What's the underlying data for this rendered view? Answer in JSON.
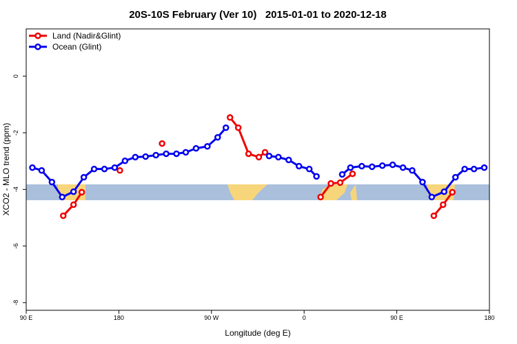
{
  "chart_data": {
    "type": "line",
    "title": "20S-10S February (Ver 10)   2015-01-01 to 2020-12-18",
    "x_label": "Longitude (deg E)",
    "y_label": "XCO2 - MLO trend (ppm)",
    "xlim": [
      90,
      540
    ],
    "ylim": [
      -8.27,
      1.67
    ],
    "xticks": [
      {
        "value": 90,
        "label": "90 E"
      },
      180,
      {
        "value": 270,
        "label": "90 W"
      },
      {
        "value": 360,
        "label": "0"
      },
      {
        "value": 450,
        "label": "90 E"
      },
      {
        "value": 540,
        "label": "180"
      }
    ],
    "yticks": [
      0,
      -2,
      -4,
      -6,
      -8
    ],
    "legend": "top-left",
    "series": [
      {
        "name": "Land (Nadir&Glint)",
        "color": "#ee0000",
        "x": [
          126,
          136,
          144,
          null,
          181,
          null,
          222,
          null,
          288,
          296,
          306,
          316,
          322,
          null,
          376,
          386,
          395,
          407,
          null,
          486,
          495,
          504
        ],
        "values": [
          -4.93,
          -4.54,
          -4.1,
          null,
          -3.33,
          null,
          -2.38,
          null,
          -1.46,
          -1.82,
          -2.74,
          -2.86,
          -2.69,
          null,
          -4.27,
          -3.79,
          -3.76,
          -3.45,
          null,
          -4.93,
          -4.54,
          -4.1
        ]
      },
      {
        "name": "Ocean (Glint)",
        "color": "#0000ee",
        "x": [
          96,
          105,
          115,
          125,
          136,
          146,
          156,
          166,
          176,
          186,
          196,
          206,
          216,
          226,
          236,
          245,
          255,
          266,
          276,
          284,
          null,
          326,
          335,
          345,
          355,
          365,
          372,
          null,
          397,
          405,
          416,
          426,
          436,
          446,
          456,
          465,
          475,
          484,
          496,
          507,
          516,
          525,
          535
        ],
        "values": [
          -3.23,
          -3.33,
          -3.74,
          -4.27,
          -4.08,
          -3.57,
          -3.28,
          -3.28,
          -3.23,
          -2.99,
          -2.86,
          -2.84,
          -2.79,
          -2.74,
          -2.74,
          -2.69,
          -2.55,
          -2.48,
          -2.16,
          -1.82,
          null,
          -2.82,
          -2.86,
          -2.96,
          -3.18,
          -3.28,
          -3.54,
          null,
          -3.47,
          -3.23,
          -3.18,
          -3.2,
          -3.16,
          -3.13,
          -3.23,
          -3.33,
          -3.74,
          -4.27,
          -4.08,
          -3.57,
          -3.28,
          -3.28,
          -3.23
        ]
      }
    ]
  }
}
